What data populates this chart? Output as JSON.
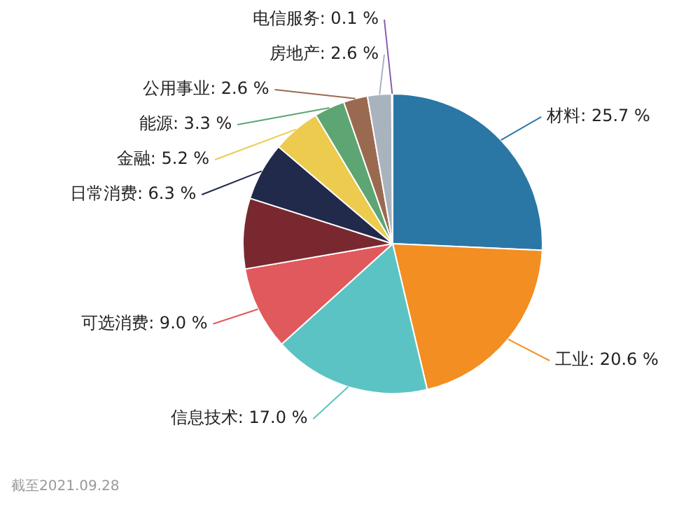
{
  "chart_data": {
    "type": "pie",
    "categories": [
      "材料",
      "工业",
      "信息技术",
      "可选消费",
      null,
      "日常消费",
      "金融",
      "能源",
      "公用事业",
      "房地产",
      "电信服务"
    ],
    "values": [
      25.7,
      20.6,
      17.0,
      9.0,
      7.6,
      6.3,
      5.2,
      3.3,
      2.6,
      2.6,
      0.1
    ],
    "value_labels": [
      "25.7 %",
      "20.6 %",
      "17.0 %",
      "9.0 %",
      null,
      "6.3 %",
      "5.2 %",
      "3.3 %",
      "2.6 %",
      "2.6 %",
      "0.1 %"
    ],
    "colors": [
      "#2a77a6",
      "#f28e22",
      "#5cc3c4",
      "#e0595c",
      "#7a2830",
      "#222a4c",
      "#eccb4e",
      "#5da573",
      "#9a6a50",
      "#a9b3bd",
      "#8a5db0"
    ],
    "annotations": [
      "截至2021.09.28"
    ],
    "legend": false
  }
}
